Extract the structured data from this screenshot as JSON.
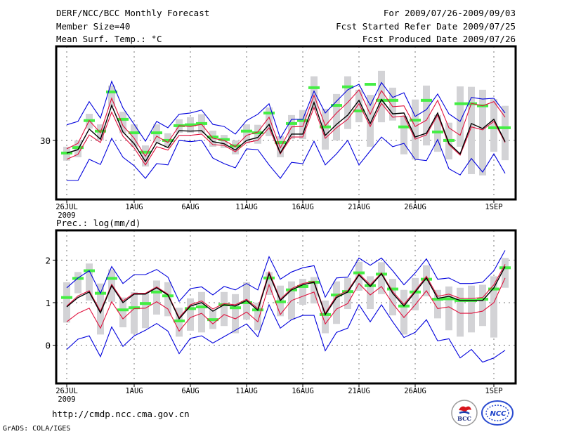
{
  "header": {
    "title": "DERF/NCC/BCC Monthly Forecast",
    "member_size": "Member Size=40",
    "variable_top": "Mean Surf. Temp.: °C",
    "period": "For 2009/07/26-2009/09/03",
    "start_date": "Fcst Started Refer Date 2009/07/25",
    "produced_date": "Fcst Produced Date 2009/07/26"
  },
  "footer": {
    "url": "http://cmdp.ncc.cma.gov.cn",
    "credit": "GrADS: COLA/IGES",
    "logos": [
      "BCC",
      "NCC"
    ]
  },
  "colors": {
    "mean": "#000000",
    "spread_inner": "#e0103c",
    "spread_outer": "#0000dd",
    "box": "#d3d3d6",
    "climate": "#44ee44",
    "grid": "#777777"
  },
  "chart_data": [
    {
      "type": "line",
      "title": "Mean Surf. Temp.: °C",
      "xlabel": "",
      "ylabel": "°C",
      "x_start": "2009-07-26",
      "n_days": 40,
      "x_ticks": [
        {
          "day": 0,
          "label": "26JUL",
          "sub": "2009"
        },
        {
          "day": 6,
          "label": "1AUG"
        },
        {
          "day": 11,
          "label": "6AUG"
        },
        {
          "day": 16,
          "label": "11AUG"
        },
        {
          "day": 21,
          "label": "16AUG"
        },
        {
          "day": 26,
          "label": "21AUG"
        },
        {
          "day": 31,
          "label": "26AUG"
        },
        {
          "day": 38,
          "label": "1SEP"
        }
      ],
      "y_ticks": [
        30
      ],
      "ylim": [
        28.6,
        32.23
      ],
      "grid": true,
      "series": [
        {
          "name": "ensemble-mean",
          "values": [
            29.7,
            29.78,
            30.27,
            30.03,
            30.83,
            30.2,
            29.92,
            29.5,
            29.95,
            29.83,
            30.23,
            30.22,
            30.23,
            29.97,
            29.92,
            29.77,
            30.0,
            30.07,
            30.38,
            29.7,
            30.15,
            30.15,
            30.9,
            30.12,
            30.38,
            30.6,
            30.95,
            30.4,
            30.97,
            30.63,
            30.65,
            30.08,
            30.17,
            30.65,
            29.93,
            29.68,
            30.4,
            30.28,
            30.5,
            29.97
          ]
        },
        {
          "name": "upper-spread-inner",
          "values": [
            29.8,
            29.93,
            30.47,
            30.18,
            31.0,
            30.35,
            30.05,
            29.62,
            30.1,
            29.95,
            30.35,
            30.33,
            30.38,
            30.05,
            30.0,
            29.85,
            30.12,
            30.2,
            30.55,
            29.82,
            30.32,
            30.33,
            31.07,
            30.35,
            30.65,
            30.9,
            31.2,
            30.62,
            31.18,
            30.8,
            30.82,
            30.33,
            30.48,
            30.95,
            30.3,
            30.12,
            30.88,
            30.82,
            30.92,
            30.55
          ]
        },
        {
          "name": "lower-spread-inner",
          "values": [
            29.55,
            29.67,
            30.13,
            29.95,
            30.67,
            30.1,
            29.82,
            29.42,
            29.85,
            29.77,
            30.12,
            30.12,
            30.15,
            29.9,
            29.88,
            29.73,
            29.95,
            30.0,
            30.3,
            29.68,
            30.08,
            30.08,
            30.78,
            30.05,
            30.3,
            30.5,
            30.87,
            30.33,
            30.88,
            30.55,
            30.58,
            30.03,
            30.13,
            30.6,
            29.9,
            29.65,
            30.32,
            30.25,
            30.45,
            29.95
          ]
        },
        {
          "name": "upper-spread-outer",
          "values": [
            30.37,
            30.45,
            30.92,
            30.53,
            31.4,
            30.77,
            30.38,
            29.98,
            30.45,
            30.3,
            30.62,
            30.65,
            30.72,
            30.38,
            30.33,
            30.15,
            30.47,
            30.62,
            30.87,
            30.05,
            30.5,
            30.5,
            31.17,
            30.65,
            30.93,
            31.2,
            31.33,
            30.83,
            31.37,
            31.02,
            31.13,
            30.57,
            30.73,
            31.1,
            30.63,
            30.45,
            31.02,
            30.98,
            31.0,
            30.65
          ]
        },
        {
          "name": "lower-spread-outer",
          "values": [
            29.05,
            29.05,
            29.55,
            29.43,
            30.05,
            29.6,
            29.4,
            29.1,
            29.45,
            29.42,
            30.0,
            29.97,
            30.0,
            29.58,
            29.45,
            29.35,
            29.8,
            29.78,
            29.42,
            29.1,
            29.48,
            29.45,
            29.98,
            29.42,
            29.68,
            30.0,
            29.42,
            29.75,
            30.08,
            29.85,
            29.93,
            29.55,
            29.52,
            30.02,
            29.33,
            29.18,
            29.57,
            29.25,
            29.68,
            29.22
          ]
        },
        {
          "name": "climatology",
          "values": [
            29.7,
            29.83,
            30.47,
            30.22,
            31.15,
            30.5,
            30.18,
            29.72,
            30.18,
            30.0,
            30.35,
            30.37,
            30.4,
            30.08,
            30.02,
            29.87,
            30.22,
            30.18,
            30.65,
            29.95,
            30.4,
            30.47,
            31.25,
            30.32,
            30.83,
            31.27,
            30.7,
            31.33,
            30.95,
            30.95,
            30.32,
            30.48,
            30.95,
            30.2,
            30.0,
            30.87,
            30.87,
            30.82,
            30.3,
            30.3
          ]
        },
        {
          "name": "spread-box-top",
          "values": [
            29.85,
            30.0,
            30.63,
            30.38,
            31.3,
            30.68,
            30.38,
            29.88,
            30.38,
            30.17,
            30.5,
            30.55,
            30.62,
            30.23,
            30.13,
            30.0,
            30.38,
            30.37,
            30.78,
            30.1,
            30.6,
            30.72,
            31.52,
            30.75,
            31.1,
            31.52,
            31.2,
            31.08,
            31.65,
            31.25,
            30.58,
            30.97,
            31.3,
            30.6,
            30.42,
            31.28,
            31.27,
            31.2,
            30.98,
            30.82
          ]
        },
        {
          "name": "spread-box-bottom",
          "values": [
            29.52,
            29.6,
            30.28,
            30.0,
            30.8,
            30.17,
            29.85,
            29.38,
            29.95,
            29.83,
            30.18,
            30.18,
            30.17,
            29.85,
            29.82,
            29.67,
            29.93,
            29.92,
            30.1,
            29.6,
            30.03,
            30.03,
            30.72,
            29.78,
            30.0,
            30.27,
            30.43,
            29.85,
            30.43,
            30.47,
            29.67,
            29.55,
            29.88,
            29.73,
            29.55,
            29.85,
            29.2,
            29.17,
            29.73,
            29.53
          ]
        }
      ]
    },
    {
      "type": "line",
      "title": "Prec.: log(mm/d)",
      "xlabel": "",
      "ylabel": "log(mm/d)",
      "x_start": "2009-07-26",
      "n_days": 40,
      "x_ticks": [
        {
          "day": 0,
          "label": "26JUL",
          "sub": "2009"
        },
        {
          "day": 6,
          "label": "1AUG"
        },
        {
          "day": 11,
          "label": "6AUG"
        },
        {
          "day": 16,
          "label": "11AUG"
        },
        {
          "day": 21,
          "label": "16AUG"
        },
        {
          "day": 26,
          "label": "21AUG"
        },
        {
          "day": 31,
          "label": "26AUG"
        },
        {
          "day": 38,
          "label": "1SEP"
        }
      ],
      "y_ticks": [
        0,
        1,
        2
      ],
      "ylim": [
        -0.9,
        2.7
      ],
      "grid": true,
      "series": [
        {
          "name": "ensemble-mean",
          "values": [
            0.9,
            1.12,
            1.25,
            0.76,
            1.4,
            1.0,
            1.2,
            1.2,
            1.35,
            1.18,
            0.62,
            0.92,
            1.0,
            0.8,
            0.95,
            0.92,
            1.05,
            0.82,
            1.68,
            1.05,
            1.3,
            1.42,
            1.48,
            0.72,
            1.12,
            1.25,
            1.65,
            1.38,
            1.68,
            1.22,
            0.92,
            1.25,
            1.58,
            1.1,
            1.15,
            1.05,
            1.05,
            1.05,
            1.35,
            1.85
          ]
        },
        {
          "name": "upper-spread-inner",
          "values": [
            0.92,
            1.16,
            1.28,
            0.8,
            1.43,
            1.04,
            1.22,
            1.22,
            1.37,
            1.2,
            0.65,
            0.95,
            1.04,
            0.85,
            0.98,
            0.95,
            1.08,
            0.86,
            1.72,
            1.08,
            1.33,
            1.45,
            1.5,
            0.75,
            1.16,
            1.28,
            1.68,
            1.42,
            1.7,
            1.26,
            0.96,
            1.28,
            1.62,
            1.15,
            1.2,
            1.1,
            1.1,
            1.12,
            1.42,
            1.9
          ]
        },
        {
          "name": "lower-spread-inner",
          "values": [
            0.55,
            0.75,
            0.87,
            0.4,
            1.02,
            0.62,
            0.86,
            0.87,
            1.02,
            0.85,
            0.33,
            0.65,
            0.75,
            0.5,
            0.72,
            0.62,
            0.78,
            0.55,
            1.42,
            0.72,
            1.05,
            1.15,
            1.25,
            0.5,
            0.85,
            0.98,
            1.45,
            1.18,
            1.38,
            0.98,
            0.65,
            0.95,
            1.28,
            0.86,
            0.9,
            0.75,
            0.75,
            0.8,
            1.0,
            1.58
          ]
        },
        {
          "name": "upper-spread-outer",
          "values": [
            1.35,
            1.58,
            1.75,
            1.22,
            1.85,
            1.45,
            1.66,
            1.66,
            1.78,
            1.6,
            1.03,
            1.33,
            1.37,
            1.18,
            1.38,
            1.3,
            1.45,
            1.3,
            2.08,
            1.55,
            1.72,
            1.82,
            1.87,
            1.13,
            1.58,
            1.6,
            2.05,
            1.88,
            2.05,
            1.75,
            1.42,
            1.7,
            2.03,
            1.55,
            1.58,
            1.45,
            1.45,
            1.48,
            1.75,
            2.23
          ]
        },
        {
          "name": "lower-spread-outer",
          "values": [
            -0.1,
            0.14,
            0.22,
            -0.27,
            0.43,
            -0.03,
            0.22,
            0.35,
            0.51,
            0.33,
            -0.2,
            0.16,
            0.22,
            0.05,
            0.2,
            0.35,
            0.5,
            0.2,
            0.95,
            0.4,
            0.6,
            0.7,
            0.7,
            -0.13,
            0.3,
            0.4,
            0.95,
            0.55,
            0.95,
            0.55,
            0.18,
            0.3,
            0.6,
            0.1,
            0.15,
            -0.3,
            -0.1,
            -0.4,
            -0.3,
            -0.12
          ]
        },
        {
          "name": "climatology",
          "values": [
            1.12,
            1.57,
            1.75,
            1.22,
            1.57,
            0.83,
            0.88,
            0.98,
            1.25,
            1.16,
            0.57,
            0.86,
            0.9,
            0.6,
            0.95,
            0.88,
            1.0,
            0.83,
            1.58,
            1.02,
            1.3,
            1.38,
            1.48,
            0.72,
            1.18,
            1.26,
            1.7,
            1.4,
            1.67,
            1.32,
            0.92,
            1.25,
            1.55,
            1.08,
            1.09,
            1.05,
            1.05,
            1.08,
            1.32,
            1.82
          ]
        },
        {
          "name": "spread-box-top",
          "values": [
            1.48,
            1.72,
            1.92,
            1.45,
            1.78,
            1.12,
            1.25,
            1.22,
            1.52,
            1.48,
            0.88,
            1.1,
            1.25,
            0.82,
            1.25,
            1.2,
            1.48,
            1.0,
            1.72,
            1.4,
            1.5,
            1.56,
            1.6,
            1.05,
            1.5,
            1.58,
            1.96,
            1.62,
            1.95,
            1.56,
            1.3,
            1.58,
            1.88,
            1.3,
            1.38,
            1.35,
            1.4,
            1.42,
            1.62,
            2.05
          ]
        },
        {
          "name": "spread-box-bottom",
          "values": [
            0.53,
            1.22,
            1.05,
            0.25,
            1.02,
            0.42,
            0.27,
            0.4,
            0.72,
            0.68,
            0.2,
            0.34,
            0.3,
            0.38,
            0.45,
            0.28,
            0.6,
            0.35,
            1.18,
            0.68,
            0.6,
            0.95,
            0.98,
            0.28,
            0.5,
            0.85,
            1.28,
            0.85,
            1.2,
            0.7,
            0.25,
            0.82,
            1.15,
            0.63,
            0.35,
            0.2,
            0.3,
            0.45,
            0.18,
            1.35
          ]
        }
      ]
    }
  ]
}
